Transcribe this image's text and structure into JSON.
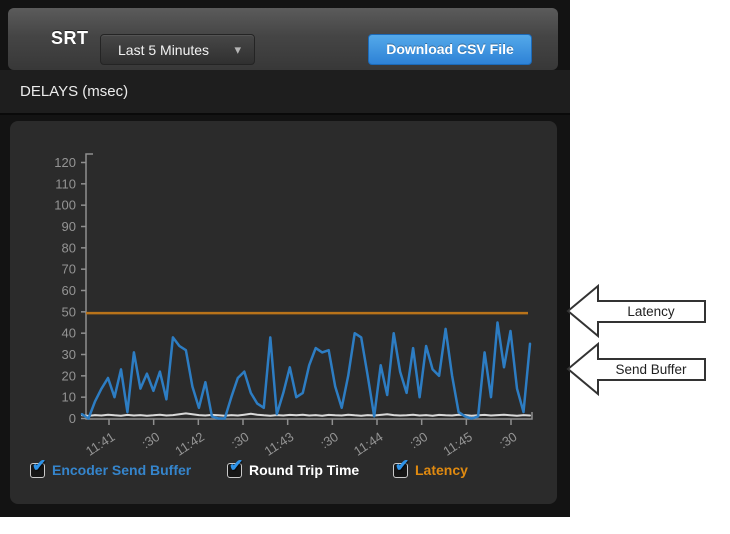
{
  "toolbar": {
    "app_label": "SRT",
    "time_range_value": "Last 5 Minutes",
    "download_label": "Download CSV File"
  },
  "icons": {
    "caret_down": "▾",
    "check": "✔"
  },
  "section": {
    "title": "DELAYS (msec)"
  },
  "chart_data": {
    "type": "line",
    "title": "DELAYS (msec)",
    "ylabel": "msec",
    "ylim": [
      0,
      120
    ],
    "y_ticks": [
      0,
      10,
      20,
      30,
      40,
      50,
      60,
      70,
      80,
      90,
      100,
      110,
      120
    ],
    "x_tick_labels": [
      "11:41",
      ":30",
      "11:42",
      ":30",
      "11:43",
      ":30",
      "11:44",
      ":30",
      "11:45",
      ":30"
    ],
    "grid": false,
    "legend_position": "bottom",
    "series": [
      {
        "name": "Round Trip Time",
        "color": "#d9d9d9",
        "width": 2,
        "values": [
          1.5,
          1.2,
          1.6,
          1.4,
          1.8,
          1.5,
          1.3,
          1.7,
          1.4,
          1.6,
          1.3,
          1.5,
          1.8,
          1.4,
          1.6,
          2.0,
          2.4,
          2.0,
          1.6,
          1.4,
          1.7,
          1.5,
          1.3,
          1.6,
          1.4,
          1.8,
          2.2,
          1.8,
          1.5,
          1.3,
          1.6,
          1.4,
          1.7,
          1.5,
          1.8,
          1.4,
          1.6,
          1.3,
          1.7,
          1.5,
          1.4,
          1.8,
          1.5,
          1.3,
          1.6,
          1.4,
          1.7,
          2.0,
          1.6,
          1.4,
          1.5,
          1.8,
          1.4,
          1.6,
          1.3,
          1.7,
          1.5,
          1.4,
          1.8,
          1.6,
          1.3,
          1.5,
          1.7,
          1.4,
          1.6,
          1.8,
          1.5,
          1.3,
          1.6,
          1.4
        ]
      },
      {
        "name": "Encoder Send Buffer",
        "color": "#2d7dc3",
        "width": 2.5,
        "values": [
          2,
          0,
          8,
          14,
          19,
          10,
          23,
          3,
          31,
          14,
          21,
          13,
          22,
          9,
          38,
          34,
          32,
          15,
          5,
          17,
          1,
          0,
          0,
          10,
          19,
          22,
          12,
          7,
          5,
          38,
          2,
          12,
          24,
          10,
          12,
          25,
          33,
          31,
          32,
          15,
          5,
          20,
          40,
          38,
          20,
          1,
          25,
          11,
          40,
          22,
          12,
          33,
          10,
          34,
          23,
          20,
          42,
          20,
          3,
          1,
          0,
          1,
          31,
          10,
          45,
          24,
          41,
          14,
          3,
          35
        ]
      },
      {
        "name": "Latency",
        "color": "#b9731a",
        "width": 2.5,
        "constant": 49.4
      }
    ]
  },
  "legend": {
    "items": [
      {
        "label": "Encoder Send Buffer",
        "color": "#3585cc",
        "checked": true
      },
      {
        "label": "Round Trip Time",
        "color": "#ffffff",
        "checked": true
      },
      {
        "label": "Latency",
        "color": "#e08a10",
        "checked": true
      }
    ]
  },
  "annotations": [
    {
      "label": "Latency"
    },
    {
      "label": "Send Buffer"
    }
  ]
}
